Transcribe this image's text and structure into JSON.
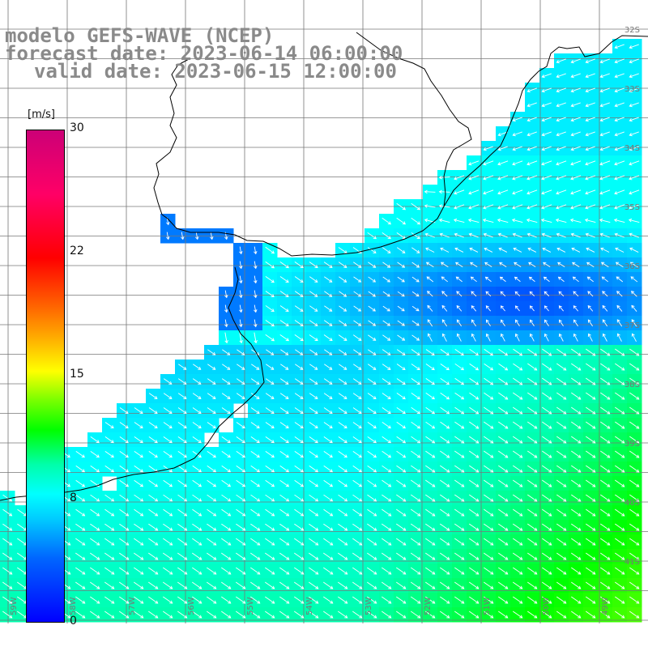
{
  "title": {
    "line1": "modelo GEFS-WAVE (NCEP)",
    "line2": "forecast date: 2023-06-14 06:00:00",
    "line3": "valid date: 2023-06-15 12:00:00"
  },
  "colorbar": {
    "unit": "[m/s]",
    "ticks": [
      "30",
      "22",
      "15",
      "8",
      "0"
    ],
    "colors": [
      "#0000ff",
      "#00ffff",
      "#00ff00",
      "#ffff00",
      "#ff0000",
      "#cc0077"
    ]
  },
  "lat_labels": [
    "32S",
    "33S",
    "34S",
    "35S",
    "36S",
    "37S",
    "38S",
    "39S",
    "40S",
    "41S"
  ],
  "lon_labels": [
    "59W",
    "58W",
    "57W",
    "56W",
    "55W",
    "54W",
    "53W",
    "52W",
    "51W",
    "50W",
    "49W"
  ],
  "field": {
    "variable": "wind speed",
    "units": "m/s",
    "range": [
      0,
      30
    ],
    "extent": {
      "lon": [
        -59.5,
        -48.5
      ],
      "lat": [
        -31.3,
        -41.9
      ]
    }
  }
}
